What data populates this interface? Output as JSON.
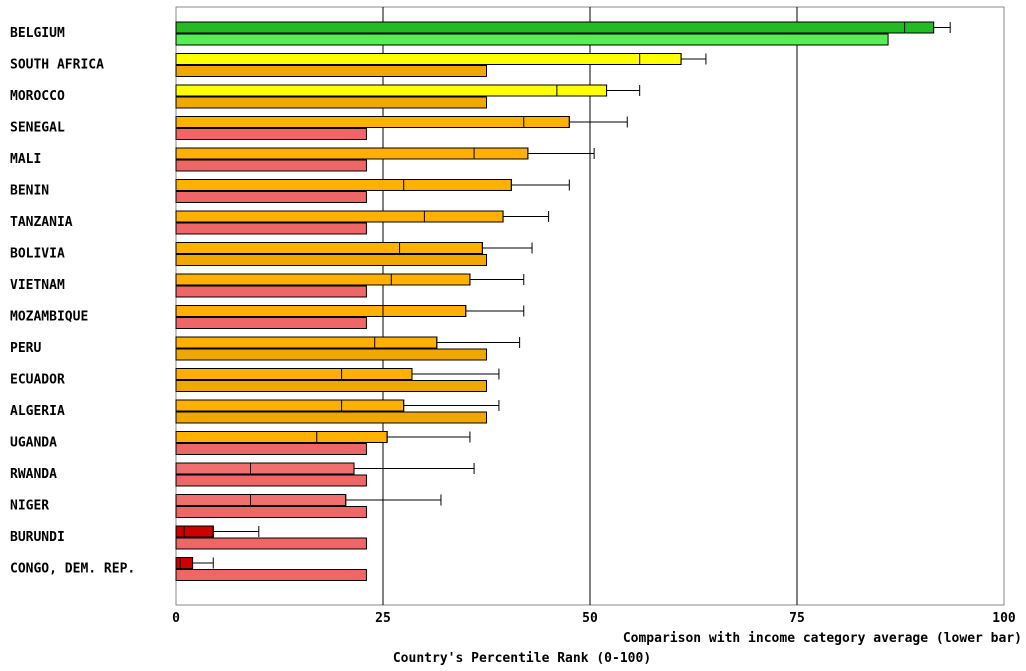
{
  "chart_data": {
    "type": "bar",
    "orientation": "horizontal",
    "xlim": [
      0,
      100
    ],
    "ticks": [
      "0",
      "25",
      "50",
      "75",
      "100"
    ],
    "xlabel": "Country's Percentile Rank (0-100)",
    "xlabel_secondary": "Comparison with income category average (lower bar)",
    "grid": true,
    "countries": [
      {
        "name": "BELGIUM",
        "rank": 91.5,
        "ci_low": 88.0,
        "ci_high": 93.5,
        "avg": 86.0,
        "rank_color": "#22bb22",
        "avg_color": "#55ee55"
      },
      {
        "name": "SOUTH AFRICA",
        "rank": 61.0,
        "ci_low": 56.0,
        "ci_high": 64.0,
        "avg": 37.5,
        "rank_color": "#ffff00",
        "avg_color": "#f0a800"
      },
      {
        "name": "MOROCCO",
        "rank": 52.0,
        "ci_low": 46.0,
        "ci_high": 56.0,
        "avg": 37.5,
        "rank_color": "#ffff00",
        "avg_color": "#f0a800"
      },
      {
        "name": "SENEGAL",
        "rank": 47.5,
        "ci_low": 42.0,
        "ci_high": 54.5,
        "avg": 23.0,
        "rank_color": "#ffb000",
        "avg_color": "#ee6666"
      },
      {
        "name": "MALI",
        "rank": 42.5,
        "ci_low": 36.0,
        "ci_high": 50.5,
        "avg": 23.0,
        "rank_color": "#ffb000",
        "avg_color": "#ee6666"
      },
      {
        "name": "BENIN",
        "rank": 40.5,
        "ci_low": 27.5,
        "ci_high": 47.5,
        "avg": 23.0,
        "rank_color": "#ffb000",
        "avg_color": "#ee6666"
      },
      {
        "name": "TANZANIA",
        "rank": 39.5,
        "ci_low": 30.0,
        "ci_high": 45.0,
        "avg": 23.0,
        "rank_color": "#ffb000",
        "avg_color": "#ee6666"
      },
      {
        "name": "BOLIVIA",
        "rank": 37.0,
        "ci_low": 27.0,
        "ci_high": 43.0,
        "avg": 37.5,
        "rank_color": "#ffb000",
        "avg_color": "#f0a800"
      },
      {
        "name": "VIETNAM",
        "rank": 35.5,
        "ci_low": 26.0,
        "ci_high": 42.0,
        "avg": 23.0,
        "rank_color": "#ffb000",
        "avg_color": "#ee6666"
      },
      {
        "name": "MOZAMBIQUE",
        "rank": 35.0,
        "ci_low": 25.0,
        "ci_high": 42.0,
        "avg": 23.0,
        "rank_color": "#ffb000",
        "avg_color": "#ee6666"
      },
      {
        "name": "PERU",
        "rank": 31.5,
        "ci_low": 24.0,
        "ci_high": 41.5,
        "avg": 37.5,
        "rank_color": "#ffb000",
        "avg_color": "#f0a800"
      },
      {
        "name": "ECUADOR",
        "rank": 28.5,
        "ci_low": 20.0,
        "ci_high": 39.0,
        "avg": 37.5,
        "rank_color": "#ffb000",
        "avg_color": "#f0a800"
      },
      {
        "name": "ALGERIA",
        "rank": 27.5,
        "ci_low": 20.0,
        "ci_high": 39.0,
        "avg": 37.5,
        "rank_color": "#ffb000",
        "avg_color": "#f0a800"
      },
      {
        "name": "UGANDA",
        "rank": 25.5,
        "ci_low": 17.0,
        "ci_high": 35.5,
        "avg": 23.0,
        "rank_color": "#ffb000",
        "avg_color": "#ee6666"
      },
      {
        "name": "RWANDA",
        "rank": 21.5,
        "ci_low": 9.0,
        "ci_high": 36.0,
        "avg": 23.0,
        "rank_color": "#f07070",
        "avg_color": "#ee6666"
      },
      {
        "name": "NIGER",
        "rank": 20.5,
        "ci_low": 9.0,
        "ci_high": 32.0,
        "avg": 23.0,
        "rank_color": "#f07070",
        "avg_color": "#ee6666"
      },
      {
        "name": "BURUNDI",
        "rank": 4.5,
        "ci_low": 1.0,
        "ci_high": 10.0,
        "avg": 23.0,
        "rank_color": "#cc0000",
        "avg_color": "#ee6666"
      },
      {
        "name": "CONGO, DEM. REP.",
        "rank": 2.0,
        "ci_low": 0.5,
        "ci_high": 4.5,
        "avg": 23.0,
        "rank_color": "#cc0000",
        "avg_color": "#ee6666"
      }
    ]
  }
}
